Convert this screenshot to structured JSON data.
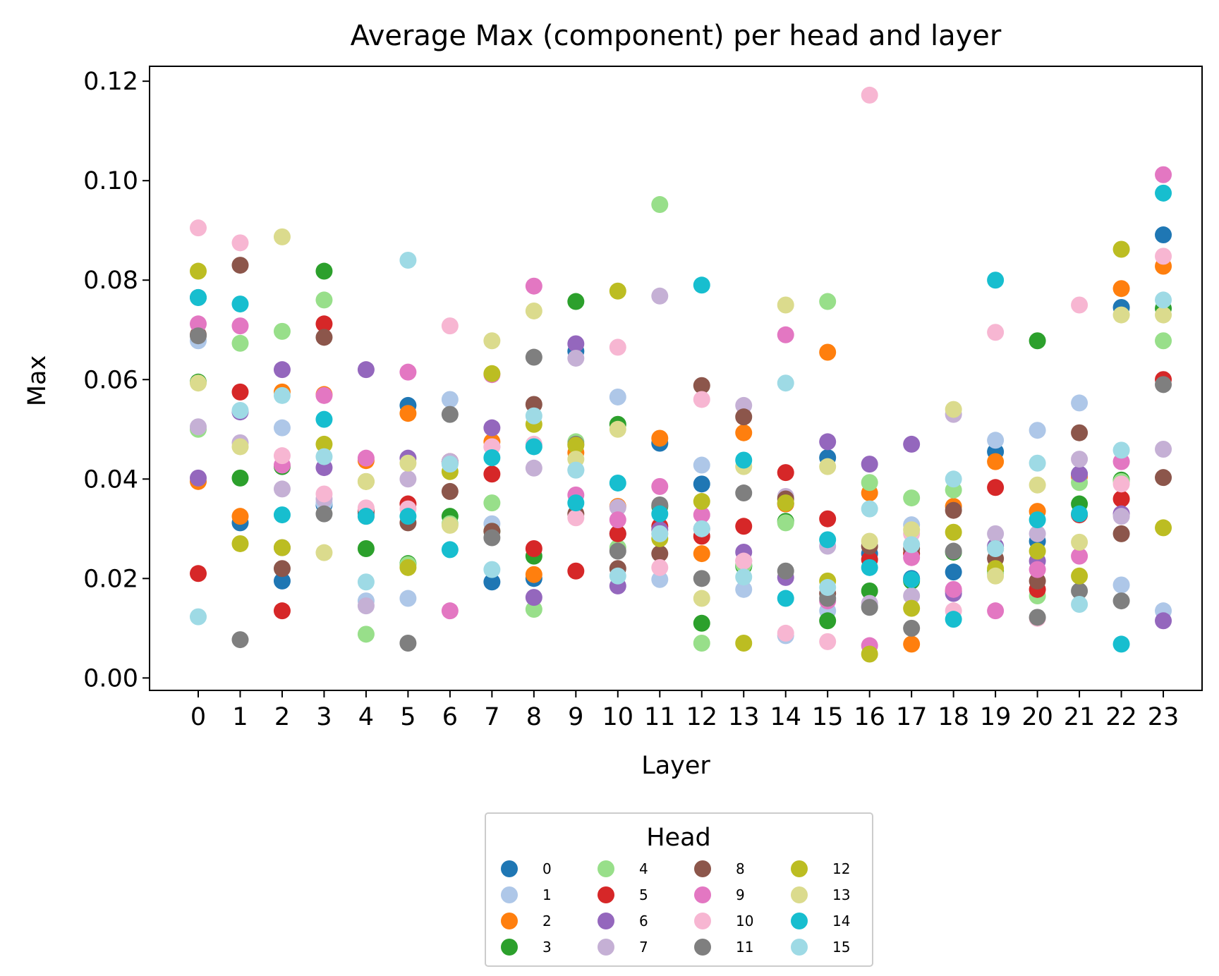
{
  "chart_data": {
    "type": "scatter",
    "title": "Average Max (component) per head and layer",
    "xlabel": "Layer",
    "ylabel": "Max",
    "ylim": [
      -0.0025,
      0.123
    ],
    "yticks": [
      "0.00",
      "0.02",
      "0.04",
      "0.06",
      "0.08",
      "0.10",
      "0.12"
    ],
    "x": [
      0,
      1,
      2,
      3,
      4,
      5,
      6,
      7,
      8,
      9,
      10,
      11,
      12,
      13,
      14,
      15,
      16,
      17,
      18,
      19,
      20,
      21,
      22,
      23
    ],
    "grid": false,
    "legend": {
      "title": "Head",
      "placement": "bottom-center",
      "columns": 4
    },
    "series": [
      {
        "name": "0",
        "color": "#1f77b4",
        "values": [
          0.0765,
          0.0312,
          0.0195,
          0.0348,
          0.033,
          0.0548,
          0.0432,
          0.0193,
          0.02,
          0.0657,
          0.029,
          0.0472,
          0.039,
          0.0225,
          0.035,
          0.0443,
          0.025,
          0.02,
          0.0213,
          0.0455,
          0.0275,
          0.041,
          0.0745,
          0.0891
        ]
      },
      {
        "name": "1",
        "color": "#aec7e8",
        "values": [
          0.0678,
          0.0535,
          0.0503,
          0.0352,
          0.0155,
          0.016,
          0.056,
          0.031,
          0.047,
          0.0418,
          0.0565,
          0.0198,
          0.0428,
          0.0178,
          0.0085,
          0.0135,
          0.0145,
          0.0308,
          0.0345,
          0.0478,
          0.0498,
          0.0553,
          0.0187,
          0.0135
        ]
      },
      {
        "name": "2",
        "color": "#ff7f0e",
        "values": [
          0.0395,
          0.0325,
          0.0575,
          0.057,
          0.0437,
          0.0532,
          0.0435,
          0.0475,
          0.0208,
          0.0453,
          0.0345,
          0.0482,
          0.025,
          0.0493,
          0.035,
          0.0655,
          0.0372,
          0.0068,
          0.0345,
          0.0435,
          0.0335,
          0.0405,
          0.0783,
          0.0828
        ]
      },
      {
        "name": "3",
        "color": "#2ca02c",
        "values": [
          0.0595,
          0.0402,
          0.0425,
          0.0818,
          0.026,
          0.023,
          0.0325,
          0.0295,
          0.0245,
          0.0757,
          0.051,
          0.0345,
          0.011,
          0.0225,
          0.0315,
          0.0115,
          0.0175,
          0.0195,
          0.0253,
          0.0215,
          0.0678,
          0.035,
          0.0398,
          0.0743
        ]
      },
      {
        "name": "4",
        "color": "#98df8a",
        "values": [
          0.05,
          0.0673,
          0.0697,
          0.076,
          0.0088,
          0.0228,
          0.031,
          0.0352,
          0.0138,
          0.0475,
          0.0262,
          0.0952,
          0.007,
          0.0228,
          0.0312,
          0.0757,
          0.0393,
          0.0362,
          0.0378,
          0.021,
          0.0165,
          0.0393,
          0.0395,
          0.0678
        ]
      },
      {
        "name": "5",
        "color": "#d62728",
        "values": [
          0.021,
          0.0575,
          0.0135,
          0.0712,
          0.0338,
          0.035,
          0.0435,
          0.041,
          0.026,
          0.0215,
          0.029,
          0.0305,
          0.0285,
          0.0305,
          0.0413,
          0.032,
          0.0238,
          0.025,
          0.0175,
          0.0383,
          0.0178,
          0.0328,
          0.036,
          0.06
        ]
      },
      {
        "name": "6",
        "color": "#9467bd",
        "values": [
          0.0402,
          0.0535,
          0.062,
          0.0423,
          0.062,
          0.0442,
          0.0435,
          0.0503,
          0.0162,
          0.0672,
          0.0185,
          0.0298,
          0.03,
          0.0253,
          0.0202,
          0.0475,
          0.043,
          0.047,
          0.017,
          0.0265,
          0.0235,
          0.041,
          0.033,
          0.0115
        ]
      },
      {
        "name": "7",
        "color": "#c5b0d5",
        "values": [
          0.0505,
          0.0473,
          0.038,
          0.036,
          0.0145,
          0.04,
          0.0435,
          0.0465,
          0.0422,
          0.0643,
          0.0343,
          0.0768,
          0.03,
          0.0548,
          0.0365,
          0.0265,
          0.015,
          0.0165,
          0.053,
          0.029,
          0.029,
          0.044,
          0.0325,
          0.046
        ]
      },
      {
        "name": "8",
        "color": "#8c564b",
        "values": [
          0.069,
          0.083,
          0.022,
          0.0685,
          0.0335,
          0.0312,
          0.0375,
          0.0295,
          0.055,
          0.033,
          0.022,
          0.025,
          0.0588,
          0.0525,
          0.036,
          0.017,
          0.0265,
          0.026,
          0.0337,
          0.024,
          0.0195,
          0.0493,
          0.029,
          0.0403
        ]
      },
      {
        "name": "9",
        "color": "#e377c2",
        "values": [
          0.0712,
          0.0708,
          0.0428,
          0.0568,
          0.0442,
          0.0615,
          0.0135,
          0.061,
          0.0788,
          0.0368,
          0.0318,
          0.0385,
          0.0328,
          0.0235,
          0.069,
          0.0155,
          0.0065,
          0.0242,
          0.0178,
          0.0135,
          0.0218,
          0.0245,
          0.0435,
          0.1012
        ]
      },
      {
        "name": "10",
        "color": "#f7b6d2",
        "values": [
          0.0905,
          0.0875,
          0.0447,
          0.037,
          0.0342,
          0.034,
          0.0708,
          0.0465,
          0.047,
          0.0322,
          0.0665,
          0.0222,
          0.056,
          0.0235,
          0.009,
          0.0073,
          0.1172,
          0.029,
          0.0135,
          0.0695,
          0.012,
          0.075,
          0.039,
          0.0848
        ]
      },
      {
        "name": "11",
        "color": "#7f7f7f",
        "values": [
          0.0688,
          0.0077,
          0.0262,
          0.033,
          0.0325,
          0.007,
          0.053,
          0.0282,
          0.0645,
          0.047,
          0.0255,
          0.0348,
          0.02,
          0.0372,
          0.0215,
          0.016,
          0.0142,
          0.01,
          0.0255,
          0.026,
          0.0122,
          0.0175,
          0.0155,
          0.059
        ]
      },
      {
        "name": "12",
        "color": "#bcbd22",
        "values": [
          0.0818,
          0.027,
          0.0262,
          0.047,
          0.0395,
          0.0222,
          0.0415,
          0.0612,
          0.051,
          0.0468,
          0.0778,
          0.028,
          0.0355,
          0.007,
          0.0352,
          0.0195,
          0.0048,
          0.014,
          0.0293,
          0.022,
          0.0255,
          0.0205,
          0.0862,
          0.0302
        ]
      },
      {
        "name": "13",
        "color": "#dbdb8d",
        "values": [
          0.0593,
          0.0465,
          0.0887,
          0.0252,
          0.0395,
          0.0432,
          0.0307,
          0.0678,
          0.0738,
          0.044,
          0.05,
          0.029,
          0.016,
          0.0425,
          0.075,
          0.0425,
          0.0275,
          0.0298,
          0.054,
          0.0205,
          0.0388,
          0.0273,
          0.073,
          0.073
        ]
      },
      {
        "name": "14",
        "color": "#17becf",
        "values": [
          0.0765,
          0.0752,
          0.0328,
          0.052,
          0.0325,
          0.0325,
          0.0258,
          0.0443,
          0.0465,
          0.0352,
          0.0392,
          0.033,
          0.079,
          0.0438,
          0.016,
          0.0278,
          0.0222,
          0.0198,
          0.0118,
          0.08,
          0.0318,
          0.033,
          0.0068,
          0.0975
        ]
      },
      {
        "name": "15",
        "color": "#9edae5",
        "values": [
          0.0123,
          0.0538,
          0.0568,
          0.0445,
          0.0193,
          0.084,
          0.043,
          0.0218,
          0.0527,
          0.0418,
          0.0205,
          0.029,
          0.03,
          0.0203,
          0.0593,
          0.0182,
          0.034,
          0.0268,
          0.04,
          0.026,
          0.0432,
          0.0148,
          0.0458,
          0.076
        ]
      }
    ]
  }
}
